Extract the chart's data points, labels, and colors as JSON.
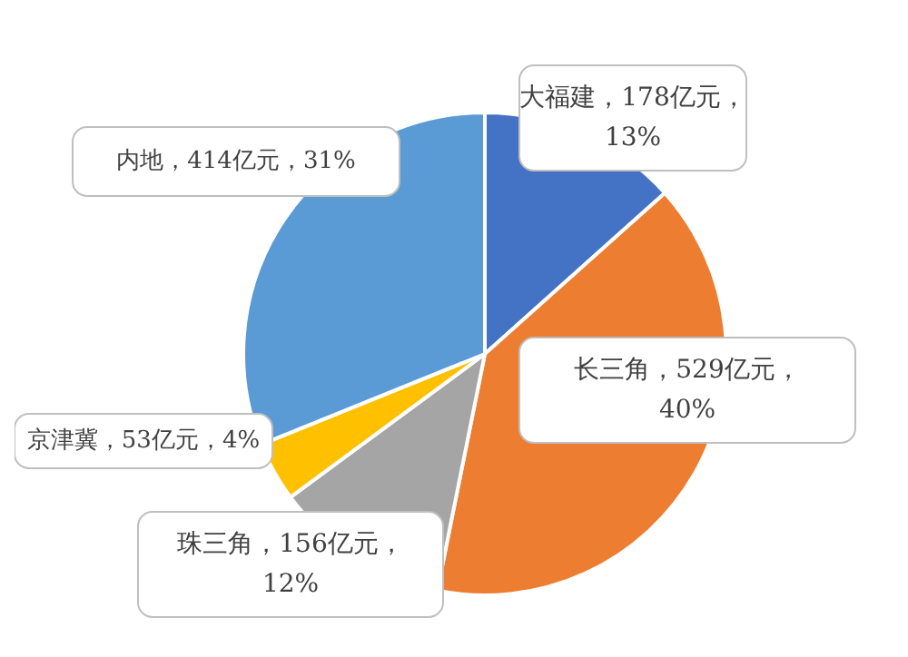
{
  "chart_data": {
    "type": "pie",
    "categories": [
      "大福建",
      "长三角",
      "珠三角",
      "京津冀",
      "内地"
    ],
    "values": [
      178,
      529,
      156,
      53,
      414
    ],
    "colors": [
      "#4472c4",
      "#ed7d31",
      "#a5a5a5",
      "#ffc000",
      "#5b9bd5"
    ],
    "value_labels": [
      "178亿元，13%",
      "529亿元，40%",
      "156亿元，12%",
      "53亿元，4%",
      "414亿元，31%"
    ],
    "legend": false
  }
}
